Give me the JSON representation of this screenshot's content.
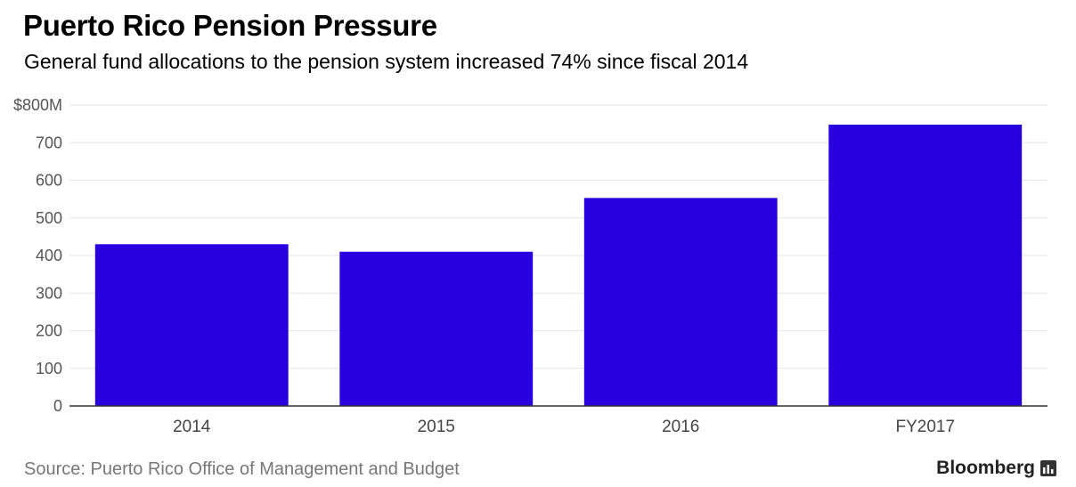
{
  "title": "Puerto Rico Pension Pressure",
  "subtitle": "General fund allocations to the pension system increased 74% since fiscal 2014",
  "source": "Source: Puerto Rico Office of Management and Budget",
  "brand": {
    "name": "Bloomberg",
    "icon": "bloomberg-terminal-icon"
  },
  "colors": {
    "bar": "#2800e0",
    "grid": "#e6e6e6",
    "axis": "#333333"
  },
  "chart_data": {
    "type": "bar",
    "title": "Puerto Rico Pension Pressure",
    "subtitle": "General fund allocations to the pension system increased 74% since fiscal 2014",
    "categories": [
      "2014",
      "2015",
      "2016",
      "FY2017"
    ],
    "values": [
      430,
      410,
      553,
      748
    ],
    "ylim": [
      0,
      800
    ],
    "yticks": [
      0,
      100,
      200,
      300,
      400,
      500,
      600,
      700,
      800
    ],
    "ytick_labels": [
      "0",
      "100",
      "200",
      "300",
      "400",
      "500",
      "600",
      "700",
      "$800M"
    ],
    "grid": true,
    "legend": false
  }
}
